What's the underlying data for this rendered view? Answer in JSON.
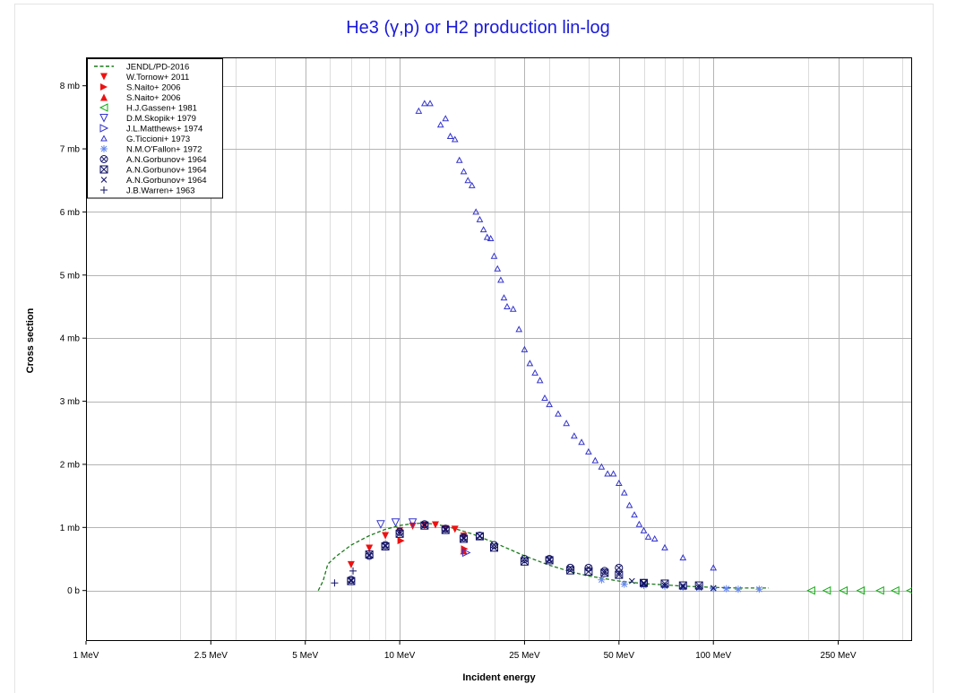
{
  "chart_data": {
    "type": "scatter",
    "title": "He3 (γ,p) or H2 production lin-log",
    "xlabel": "Incident energy",
    "ylabel": "Cross section",
    "x_scale": "log",
    "x_unit": "MeV",
    "y_unit": "mb",
    "xlim": [
      1,
      430
    ],
    "ylim": [
      -0.8,
      8.45
    ],
    "x_ticks": [
      {
        "value": 1,
        "label": "1 MeV"
      },
      {
        "value": 2.5,
        "label": "2.5 MeV"
      },
      {
        "value": 5,
        "label": "5 MeV"
      },
      {
        "value": 10,
        "label": "10 MeV"
      },
      {
        "value": 25,
        "label": "25 MeV"
      },
      {
        "value": 50,
        "label": "50 MeV"
      },
      {
        "value": 100,
        "label": "100 MeV"
      },
      {
        "value": 250,
        "label": "250 MeV"
      }
    ],
    "y_ticks": [
      {
        "value": 0,
        "label": "0 b"
      },
      {
        "value": 1,
        "label": "1 mb"
      },
      {
        "value": 2,
        "label": "2 mb"
      },
      {
        "value": 3,
        "label": "3 mb"
      },
      {
        "value": 4,
        "label": "4 mb"
      },
      {
        "value": 5,
        "label": "5 mb"
      },
      {
        "value": 6,
        "label": "6 mb"
      },
      {
        "value": 7,
        "label": "7 mb"
      },
      {
        "value": 8,
        "label": "8 mb"
      }
    ],
    "grid": true,
    "legend_position": "top-left",
    "series": [
      {
        "name": "JENDL/PD-2016",
        "marker": "dashed-line",
        "color": "#1a7a1a",
        "x": [
          5.5,
          5.7,
          5.9,
          6.3,
          7,
          8,
          9,
          10,
          11,
          12,
          13,
          14,
          15,
          17,
          20,
          25,
          30,
          35,
          40,
          50,
          60,
          70,
          80,
          90,
          100,
          110,
          120,
          140,
          150
        ],
        "y": [
          0.0,
          0.15,
          0.42,
          0.55,
          0.72,
          0.87,
          0.97,
          1.03,
          1.06,
          1.07,
          1.05,
          1.02,
          0.98,
          0.9,
          0.76,
          0.55,
          0.4,
          0.3,
          0.23,
          0.15,
          0.11,
          0.09,
          0.07,
          0.06,
          0.05,
          0.045,
          0.04,
          0.04,
          0.04
        ]
      },
      {
        "name": "W.Tornow+ 2011",
        "marker": "triangle-down-filled",
        "color": "#ee1111",
        "x": [
          7.0,
          8.0,
          9.0,
          10.0,
          11.0,
          12.0,
          13.0,
          14.0,
          15.0,
          16.0
        ],
        "y": [
          0.41,
          0.67,
          0.87,
          0.95,
          1.02,
          1.03,
          1.04,
          0.98,
          0.97,
          0.86
        ]
      },
      {
        "name": "S.Naito+ 2006",
        "marker": "triangle-right-filled",
        "color": "#ee1111",
        "x": [
          10.1,
          16.1
        ],
        "y": [
          0.79,
          0.66
        ]
      },
      {
        "name": "S.Naito+ 2006",
        "marker": "triangle-up-filled",
        "color": "#ee1111",
        "x": [
          16.0
        ],
        "y": [
          0.63
        ]
      },
      {
        "name": "H.J.Gassen+ 1981",
        "marker": "triangle-left-open",
        "color": "#11aa11",
        "x": [
          205,
          230,
          260,
          295,
          340,
          380,
          425
        ],
        "y": [
          0.0,
          0.0,
          0.0,
          0.0,
          0.0,
          0.0,
          0.0
        ]
      },
      {
        "name": "D.M.Skopik+ 1979",
        "marker": "triangle-down-open",
        "color": "#3333cc",
        "x": [
          8.7,
          9.7,
          11.0
        ],
        "y": [
          1.05,
          1.08,
          1.08
        ]
      },
      {
        "name": "J.L.Matthews+ 1974",
        "marker": "triangle-right-open",
        "color": "#3333cc",
        "x": [
          16.3
        ],
        "y": [
          0.6
        ]
      },
      {
        "name": "G.Ticcioni+ 1973",
        "marker": "triangle-up-open",
        "color": "#3333cc",
        "x": [
          11.5,
          12.0,
          12.5,
          13.5,
          14.0,
          14.5,
          15.0,
          15.5,
          16.0,
          16.5,
          17.0,
          17.5,
          18.0,
          18.5,
          19.0,
          19.5,
          20.0,
          20.5,
          21.0,
          21.5,
          22.0,
          23.0,
          24.0,
          25.0,
          26.0,
          27.0,
          28.0,
          29.0,
          30.0,
          32.0,
          34.0,
          36.0,
          38.0,
          40.0,
          42.0,
          44.0,
          46.0,
          48.0,
          50.0,
          52.0,
          54.0,
          56.0,
          58.0,
          60.0,
          62.0,
          65.0,
          70.0,
          80.0,
          100.0
        ],
        "y": [
          7.6,
          7.72,
          7.72,
          7.38,
          7.48,
          7.2,
          7.15,
          6.82,
          6.64,
          6.5,
          6.42,
          6.0,
          5.88,
          5.72,
          5.6,
          5.58,
          5.3,
          5.1,
          4.92,
          4.64,
          4.5,
          4.46,
          4.14,
          3.82,
          3.6,
          3.45,
          3.33,
          3.05,
          2.95,
          2.8,
          2.65,
          2.45,
          2.35,
          2.2,
          2.06,
          1.96,
          1.85,
          1.85,
          1.7,
          1.55,
          1.35,
          1.2,
          1.05,
          0.95,
          0.85,
          0.82,
          0.68,
          0.52,
          0.36
        ]
      },
      {
        "name": "N.M.O'Fallon+ 1972",
        "marker": "asterisk",
        "color": "#6688ee",
        "x": [
          44,
          52,
          60,
          70,
          80,
          90,
          100,
          110,
          120,
          140
        ],
        "y": [
          0.17,
          0.1,
          0.08,
          0.07,
          0.05,
          0.04,
          0.03,
          0.03,
          0.02,
          0.02
        ]
      },
      {
        "name": "A.N.Gorbunov+ 1964",
        "marker": "circle-x",
        "color": "#111166",
        "x": [
          7,
          8,
          9,
          10,
          12,
          14,
          16,
          18,
          20,
          25,
          30,
          35,
          40,
          45,
          50,
          60
        ],
        "y": [
          0.17,
          0.55,
          0.72,
          0.93,
          1.05,
          0.98,
          0.84,
          0.87,
          0.72,
          0.5,
          0.5,
          0.36,
          0.36,
          0.31,
          0.36,
          0.12
        ]
      },
      {
        "name": "A.N.Gorbunov+ 1964",
        "marker": "square-x",
        "color": "#111166",
        "x": [
          7,
          8,
          9,
          10,
          12,
          14,
          16,
          18,
          20,
          25,
          30,
          35,
          40,
          45,
          50,
          60,
          70,
          80,
          90
        ],
        "y": [
          0.15,
          0.57,
          0.7,
          0.9,
          1.03,
          0.96,
          0.82,
          0.86,
          0.68,
          0.46,
          0.48,
          0.32,
          0.3,
          0.28,
          0.25,
          0.12,
          0.11,
          0.08,
          0.08
        ]
      },
      {
        "name": "A.N.Gorbunov+ 1964",
        "marker": "x",
        "color": "#111166",
        "x": [
          50,
          55,
          60,
          70,
          80,
          90,
          100
        ],
        "y": [
          0.28,
          0.15,
          0.1,
          0.08,
          0.06,
          0.05,
          0.04
        ]
      },
      {
        "name": "J.B.Warren+ 1963",
        "marker": "plus",
        "color": "#111166",
        "x": [
          6.2,
          7.1
        ],
        "y": [
          0.12,
          0.31
        ]
      }
    ]
  }
}
